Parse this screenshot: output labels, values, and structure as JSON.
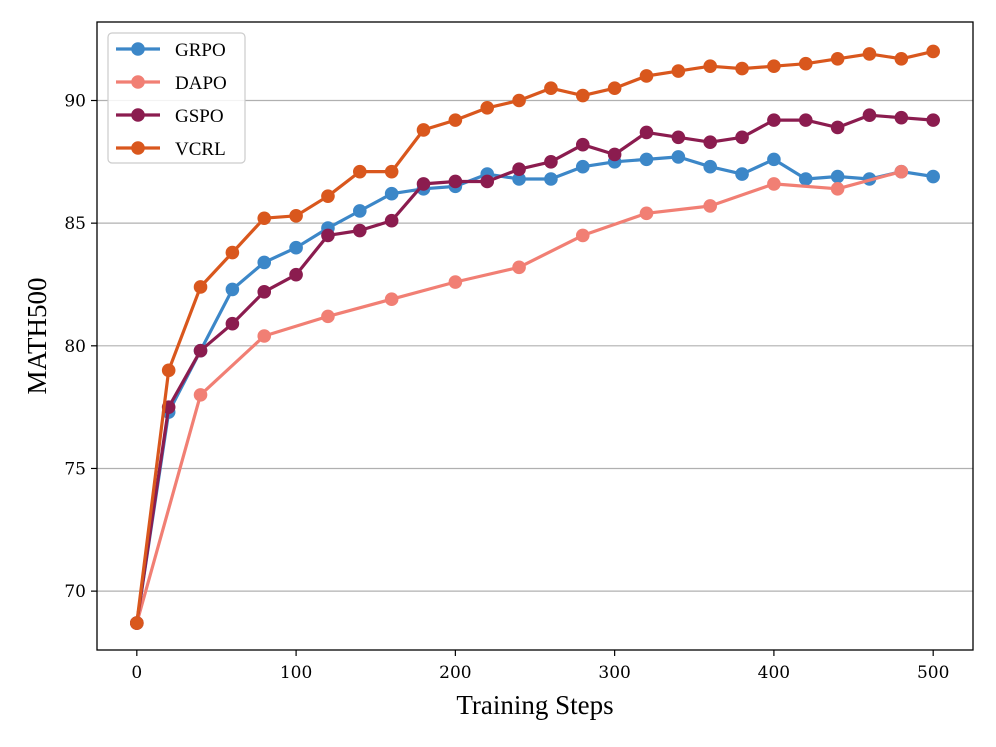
{
  "chart_data": {
    "type": "line",
    "title": "",
    "xlabel": "Training Steps",
    "ylabel": "MATH500",
    "xlim": [
      -25,
      525
    ],
    "ylim": [
      67.6,
      93.2
    ],
    "xticks": [
      0,
      100,
      200,
      300,
      400,
      500
    ],
    "yticks": [
      70,
      75,
      80,
      85,
      90
    ],
    "grid": "horizontal",
    "legend_position": "top-left",
    "series": [
      {
        "name": "GRPO",
        "color": "#3c87c8",
        "x": [
          0,
          20,
          40,
          60,
          80,
          100,
          120,
          140,
          160,
          180,
          200,
          220,
          240,
          260,
          280,
          300,
          320,
          340,
          360,
          380,
          400,
          420,
          440,
          460,
          480,
          500
        ],
        "values": [
          68.7,
          77.3,
          79.8,
          82.3,
          83.4,
          84.0,
          84.8,
          85.5,
          86.2,
          86.4,
          86.5,
          87.0,
          86.8,
          86.8,
          87.3,
          87.5,
          87.6,
          87.7,
          87.3,
          87.0,
          87.6,
          86.8,
          86.9,
          86.8,
          87.1,
          86.9
        ]
      },
      {
        "name": "DAPO",
        "color": "#f17f74",
        "x": [
          0,
          40,
          80,
          120,
          160,
          200,
          240,
          280,
          320,
          360,
          400,
          440,
          480
        ],
        "values": [
          68.7,
          78.0,
          80.4,
          81.2,
          81.9,
          82.6,
          83.2,
          84.5,
          85.4,
          85.7,
          86.6,
          86.4,
          87.1
        ]
      },
      {
        "name": "GSPO",
        "color": "#8b1c4f",
        "x": [
          0,
          20,
          40,
          60,
          80,
          100,
          120,
          140,
          160,
          180,
          200,
          220,
          240,
          260,
          280,
          300,
          320,
          340,
          360,
          380,
          400,
          420,
          440,
          460,
          480,
          500
        ],
        "values": [
          68.7,
          77.5,
          79.8,
          80.9,
          82.2,
          82.9,
          84.5,
          84.7,
          85.1,
          86.6,
          86.7,
          86.7,
          87.2,
          87.5,
          88.2,
          87.8,
          88.7,
          88.5,
          88.3,
          88.5,
          89.2,
          89.2,
          88.9,
          89.4,
          89.3,
          89.2
        ]
      },
      {
        "name": "VCRL",
        "color": "#d9571d",
        "x": [
          0,
          20,
          40,
          60,
          80,
          100,
          120,
          140,
          160,
          180,
          200,
          220,
          240,
          260,
          280,
          300,
          320,
          340,
          360,
          380,
          400,
          420,
          440,
          460,
          480,
          500
        ],
        "values": [
          68.7,
          79.0,
          82.4,
          83.8,
          85.2,
          85.3,
          86.1,
          87.1,
          87.1,
          88.8,
          89.2,
          89.7,
          90.0,
          90.5,
          90.2,
          90.5,
          91.0,
          91.2,
          91.4,
          91.3,
          91.4,
          91.5,
          91.7,
          91.9,
          91.7,
          92.0
        ]
      }
    ]
  }
}
